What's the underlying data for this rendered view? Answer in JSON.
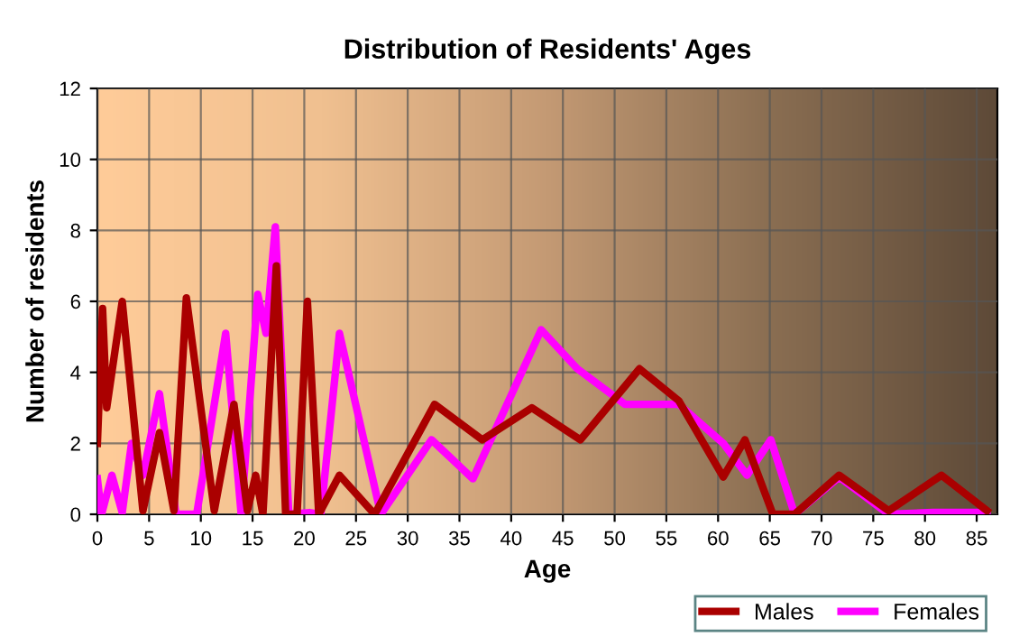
{
  "chart_data": {
    "type": "line",
    "title": "Distribution of Residents' Ages",
    "xlabel": "Age",
    "ylabel": "Number of residents",
    "xlim": [
      0,
      87
    ],
    "ylim": [
      0,
      12
    ],
    "xticks": [
      0,
      5,
      10,
      15,
      20,
      25,
      30,
      35,
      40,
      45,
      50,
      55,
      60,
      65,
      70,
      75,
      80,
      85
    ],
    "yticks": [
      0,
      2,
      4,
      6,
      8,
      10,
      12
    ],
    "grid": true,
    "legend": "bottom right",
    "line_style": "solid",
    "marker": "none",
    "series": [
      {
        "name": "Males",
        "color": "#aa0000",
        "x": [
          0,
          0.5,
          0.9,
          2.4,
          4.4,
          6.0,
          7.4,
          8.6,
          11.3,
          13.2,
          14.5,
          15.3,
          16,
          17.3,
          18.2,
          19.3,
          20.3,
          21.4,
          23.4,
          26.8,
          32.6,
          37.2,
          42.0,
          46.7,
          52.4,
          56.2,
          60.5,
          62.6,
          65.3,
          67.4,
          71.7,
          76.5,
          81.6,
          86.0
        ],
        "values": [
          2.0,
          5.8,
          3.0,
          6.0,
          0.1,
          2.3,
          0.1,
          6.1,
          0.1,
          3.1,
          0.1,
          1.1,
          0,
          7.0,
          0,
          0,
          6.0,
          0,
          1.1,
          0,
          3.1,
          2.1,
          3.0,
          2.1,
          4.1,
          3.2,
          1.05,
          2.1,
          0,
          0,
          1.1,
          0.1,
          1.1,
          0.1
        ]
      },
      {
        "name": "Females",
        "color": "#ff00ff",
        "x": [
          0,
          0.4,
          1.4,
          2.4,
          3.3,
          4.4,
          6.0,
          7.6,
          9.6,
          12.4,
          13.9,
          15.5,
          16.3,
          17.2,
          18.5,
          20.5,
          21.6,
          23.4,
          27.4,
          32.3,
          36.3,
          42.9,
          46.4,
          51,
          56.2,
          60.5,
          62.8,
          65.1,
          67.4,
          71.7,
          76.5,
          80.8,
          86
        ],
        "values": [
          1.0,
          0,
          1.1,
          0.05,
          2.0,
          1.1,
          3.4,
          0,
          0,
          5.1,
          0,
          6.2,
          5.1,
          8.1,
          0,
          0.05,
          0,
          5.1,
          0,
          2.1,
          1.0,
          5.2,
          4.1,
          3.1,
          3.1,
          2.0,
          1.1,
          2.1,
          0,
          1.05,
          0,
          0.05,
          0.05
        ]
      }
    ]
  }
}
